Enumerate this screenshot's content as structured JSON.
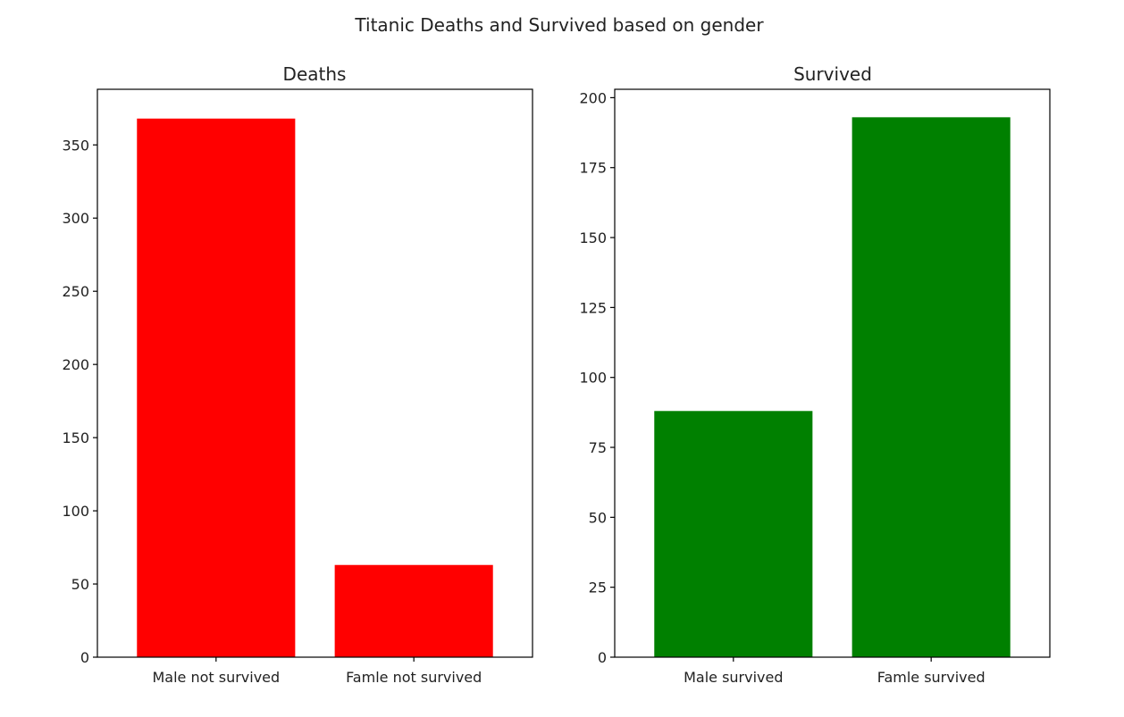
{
  "figure_title": "Titanic Deaths and Survived based on gender",
  "chart_data": [
    {
      "type": "bar",
      "title": "Deaths",
      "categories": [
        "Male not survived",
        "Famle not survived"
      ],
      "values": [
        368,
        63
      ],
      "color": "#ff0000",
      "ylim": [
        0,
        388
      ],
      "yticks": [
        0,
        50,
        100,
        150,
        200,
        250,
        300,
        350
      ],
      "xlabel": "",
      "ylabel": "",
      "grid": false
    },
    {
      "type": "bar",
      "title": "Survived",
      "categories": [
        "Male survived",
        "Famle survived"
      ],
      "values": [
        88,
        193
      ],
      "color": "#008000",
      "ylim": [
        0,
        203
      ],
      "yticks": [
        0,
        25,
        50,
        75,
        100,
        125,
        150,
        175,
        200
      ],
      "xlabel": "",
      "ylabel": "",
      "grid": false
    }
  ]
}
